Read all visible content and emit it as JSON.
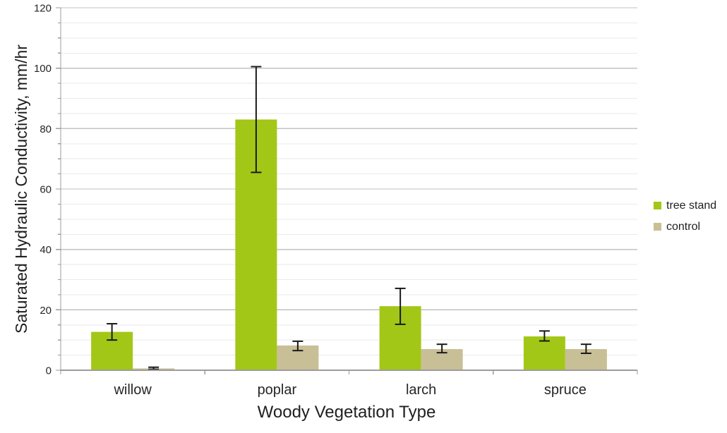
{
  "chart_data": {
    "type": "bar",
    "title": "",
    "xlabel": "Woody Vegetation Type",
    "ylabel": "Saturated Hydraulic Conductivity, mm/hr",
    "categories": [
      "willow",
      "poplar",
      "larch",
      "spruce"
    ],
    "series": [
      {
        "name": "tree stand",
        "color": "#a3c716",
        "values": [
          12.7,
          83,
          21.2,
          11.2
        ],
        "error_minus": [
          2.7,
          17.5,
          6.0,
          1.5
        ],
        "error_plus": [
          2.7,
          17.5,
          5.9,
          1.8
        ]
      },
      {
        "name": "control",
        "color": "#c8bf97",
        "values": [
          0.6,
          8.2,
          7.0,
          7.0
        ],
        "error_minus": [
          0.3,
          1.7,
          1.2,
          1.4
        ],
        "error_plus": [
          0.4,
          1.4,
          1.6,
          1.6
        ]
      }
    ],
    "ylim": [
      0,
      120
    ],
    "y_major_step": 20,
    "y_minor_step": 5,
    "y_tick_labels": [
      "0",
      "20",
      "40",
      "60",
      "80",
      "100",
      "120"
    ],
    "grid": true,
    "legend_position": "right",
    "colors": {
      "grid_major": "#c2c2c2",
      "grid_minor": "#eaeaea",
      "axis": "#9c9c9c",
      "error": "#1a1a1a",
      "text": "#262626"
    }
  }
}
